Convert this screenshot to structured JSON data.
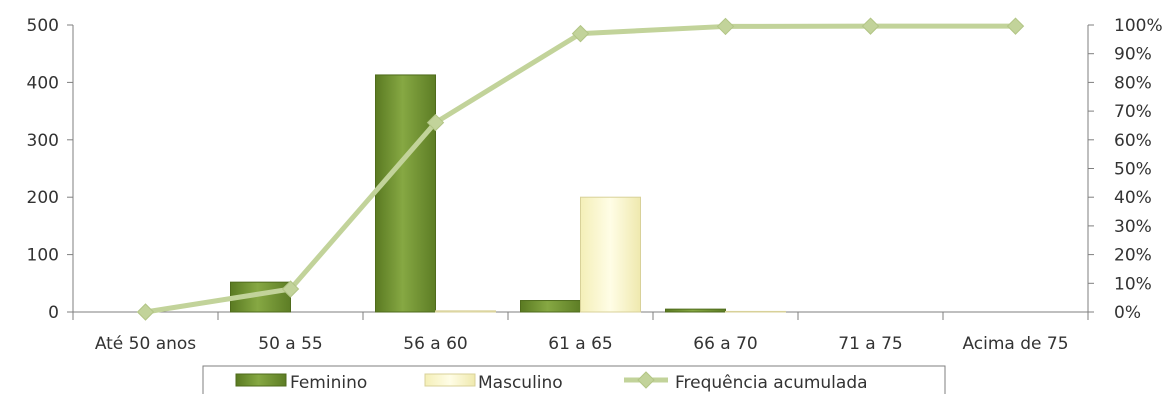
{
  "chart_data": {
    "type": "bar",
    "categories": [
      "Até 50 anos",
      "50 a 55",
      "56 a 60",
      "61 a 65",
      "66 a 70",
      "71 a 75",
      "Acima de 75"
    ],
    "series": [
      {
        "name": "Feminino",
        "type": "bar",
        "axis": "left",
        "values": [
          0,
          52,
          413,
          20,
          5,
          0,
          0
        ]
      },
      {
        "name": "Masculino",
        "type": "bar",
        "axis": "left",
        "values": [
          0,
          0,
          2,
          200,
          1,
          0,
          0
        ]
      },
      {
        "name": "Frequência acumulada",
        "type": "line",
        "axis": "right",
        "values": [
          0,
          8,
          66,
          97,
          99.5,
          99.6,
          99.6
        ]
      }
    ],
    "y_left": {
      "min": 0,
      "max": 500,
      "ticks": [
        0,
        100,
        200,
        300,
        400,
        500
      ]
    },
    "y_right": {
      "min": 0,
      "max": 100,
      "ticks": [
        0,
        10,
        20,
        30,
        40,
        50,
        60,
        70,
        80,
        90,
        100
      ],
      "tick_labels": [
        "0%",
        "10%",
        "20%",
        "30%",
        "40%",
        "50%",
        "60%",
        "70%",
        "80%",
        "90%",
        "100%"
      ]
    },
    "grid": false,
    "legend_position": "bottom",
    "colors": {
      "feminino": "#6f8f2e",
      "masculino": "#fbf7cc",
      "frequencia": "#c2d39a"
    }
  }
}
